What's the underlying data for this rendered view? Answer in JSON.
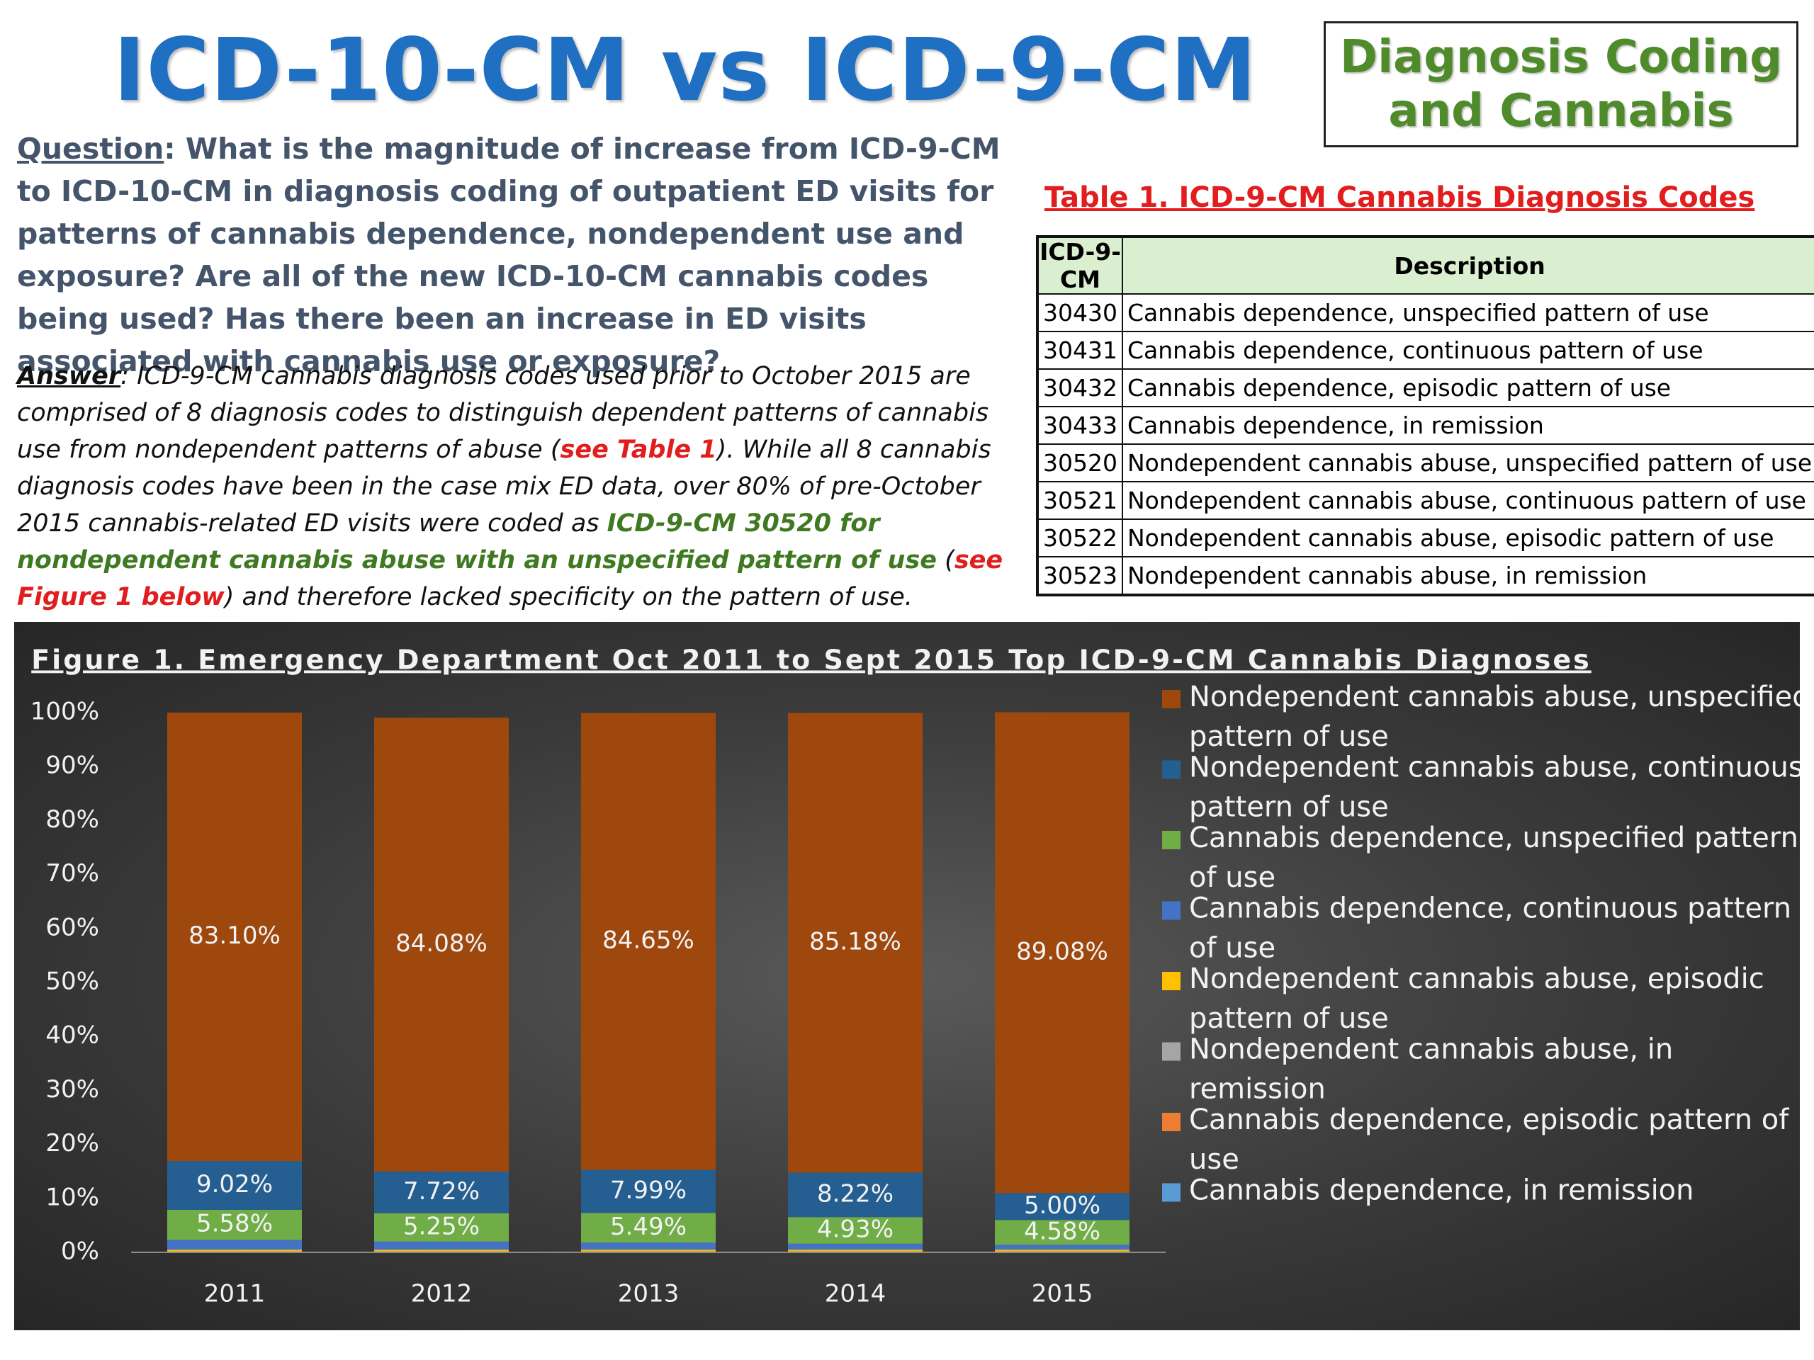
{
  "header": {
    "title": "ICD-10-CM vs ICD-9-CM",
    "side_box": "Diagnosis Coding and Cannabis"
  },
  "question": {
    "label": "Question",
    "text": ": What is the magnitude of increase from ICD-9-CM to ICD-10-CM in diagnosis coding of outpatient ED visits for patterns of cannabis dependence, nondependent use and exposure?  Are all of the new ICD-10-CM cannabis codes being used? Has there been an increase in ED visits associated with cannabis use or exposure?"
  },
  "answer": {
    "label": "Answer",
    "part1": ": ICD-9-CM cannabis diagnosis codes used prior to October 2015 are comprised of 8 diagnosis codes to distinguish dependent patterns of cannabis use from nondependent patterns of abuse (",
    "ref_table": "see Table 1",
    "part2": "). While all 8 cannabis diagnosis codes have been in the case mix ED data, over 80% of pre-October 2015 cannabis-related ED visits were coded as ",
    "highlight": "ICD-9-CM 30520 for nondependent cannabis abuse with an unspecified pattern of use",
    "part3": " (",
    "ref_figure": "see Figure 1 below",
    "part4": ") and therefore lacked specificity on the pattern of use."
  },
  "table1": {
    "title": "Table 1. ICD-9-CM Cannabis Diagnosis Codes",
    "headers": [
      "ICD-9-CM",
      "Description"
    ],
    "rows": [
      [
        "30430",
        "Cannabis dependence, unspecified pattern of use"
      ],
      [
        "30431",
        "Cannabis dependence, continuous pattern of use"
      ],
      [
        "30432",
        "Cannabis dependence, episodic pattern of use"
      ],
      [
        "30433",
        "Cannabis dependence, in remission"
      ],
      [
        "30520",
        "Nondependent cannabis abuse, unspecified pattern of use"
      ],
      [
        "30521",
        "Nondependent cannabis abuse, continuous pattern of use"
      ],
      [
        "30522",
        "Nondependent cannabis abuse, episodic pattern of use"
      ],
      [
        "30523",
        "Nondependent cannabis abuse, in remission"
      ]
    ]
  },
  "chart_data": {
    "type": "bar",
    "stacked": true,
    "title": "Figure 1. Emergency Department Oct 2011 to Sept 2015 Top ICD-9-CM Cannabis Diagnoses",
    "categories": [
      "2011",
      "2012",
      "2013",
      "2014",
      "2015"
    ],
    "ylim": [
      0,
      100
    ],
    "yticks": [
      "0%",
      "10%",
      "20%",
      "30%",
      "40%",
      "50%",
      "60%",
      "70%",
      "80%",
      "90%",
      "100%"
    ],
    "grid": false,
    "legend_position": "right",
    "series": [
      {
        "name": "Cannabis dependence, in remission",
        "color": "#5b9bd5",
        "values": [
          0.05,
          0.05,
          0.05,
          0.05,
          0.05
        ],
        "labels": [
          "",
          "",
          "",
          "",
          ""
        ]
      },
      {
        "name": "Cannabis dependence, episodic pattern of use",
        "color": "#ed7d31",
        "values": [
          0.05,
          0.05,
          0.05,
          0.05,
          0.05
        ],
        "labels": [
          "",
          "",
          "",
          "",
          ""
        ]
      },
      {
        "name": "Nondependent cannabis abuse, in remission",
        "color": "#a5a5a5",
        "values": [
          0.1,
          0.1,
          0.1,
          0.1,
          0.1
        ],
        "labels": [
          "",
          "",
          "",
          "",
          ""
        ]
      },
      {
        "name": "Nondependent cannabis abuse, episodic pattern of use",
        "color": "#ffc000",
        "values": [
          0.3,
          0.3,
          0.3,
          0.3,
          0.3
        ],
        "labels": [
          "",
          "",
          "",
          "",
          ""
        ]
      },
      {
        "name": "Cannabis dependence, continuous pattern of use",
        "color": "#4472c4",
        "values": [
          1.8,
          1.5,
          1.3,
          1.1,
          0.9
        ],
        "labels": [
          "",
          "",
          "",
          "",
          ""
        ]
      },
      {
        "name": "Cannabis dependence, unspecified pattern of use",
        "color": "#70ad47",
        "values": [
          5.58,
          5.25,
          5.49,
          4.93,
          4.58
        ],
        "labels": [
          "5.58%",
          "5.25%",
          "5.49%",
          "4.93%",
          "4.58%"
        ]
      },
      {
        "name": "Nondependent cannabis abuse, continuous pattern of use",
        "color": "#255e91",
        "values": [
          9.02,
          7.72,
          7.99,
          8.22,
          5.0
        ],
        "labels": [
          "9.02%",
          "7.72%",
          "7.99%",
          "8.22%",
          "5.00%"
        ]
      },
      {
        "name": "Nondependent cannabis abuse, unspecified pattern of use",
        "color": "#9e480e",
        "values": [
          83.1,
          84.08,
          84.65,
          85.18,
          89.08
        ],
        "labels": [
          "83.10%",
          "84.08%",
          "84.65%",
          "85.18%",
          "89.08%"
        ]
      }
    ],
    "legend_order": [
      "Nondependent cannabis abuse, unspecified pattern of use",
      "Nondependent cannabis abuse, continuous pattern of use",
      "Cannabis dependence, unspecified pattern of use",
      "Cannabis dependence, continuous pattern of use",
      "Nondependent cannabis abuse, episodic pattern of use",
      "Nondependent cannabis abuse, in remission",
      "Cannabis dependence, episodic pattern of use",
      "Cannabis dependence, in remission"
    ]
  }
}
